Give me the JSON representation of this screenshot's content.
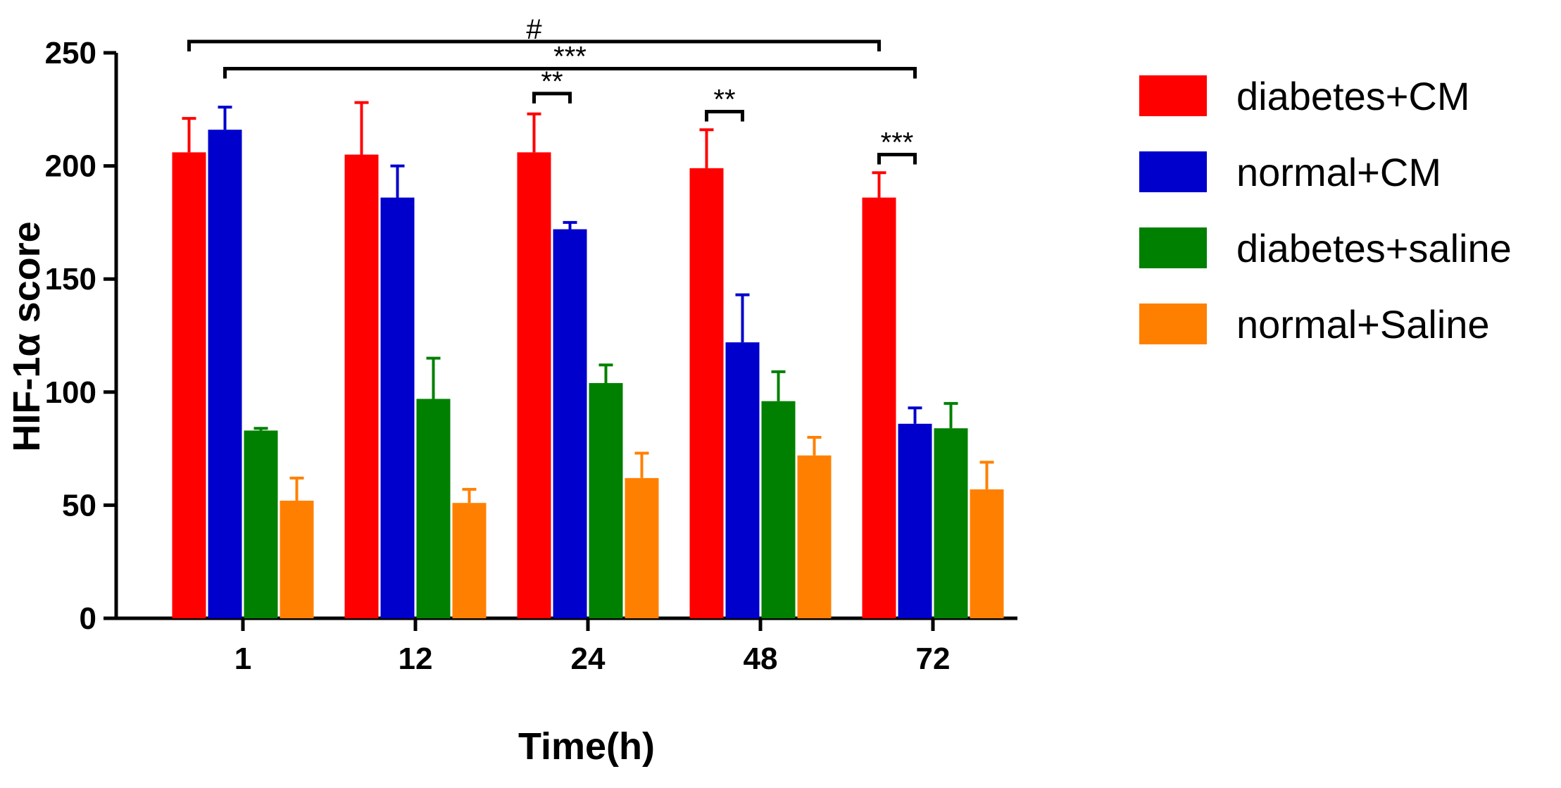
{
  "chart_data": {
    "type": "bar",
    "title": "",
    "xlabel": "Time(h)",
    "ylabel": "HIF-1α score",
    "ylim": [
      0,
      250
    ],
    "yticks": [
      0,
      50,
      100,
      150,
      200,
      250
    ],
    "categories": [
      "1",
      "12",
      "24",
      "48",
      "72"
    ],
    "series": [
      {
        "name": "diabetes+CM",
        "color": "#ff0000",
        "values": [
          206,
          205,
          206,
          199,
          186
        ],
        "errors": [
          15,
          23,
          17,
          17,
          11
        ]
      },
      {
        "name": "normal+CM",
        "color": "#0000cc",
        "values": [
          216,
          186,
          172,
          122,
          86
        ],
        "errors": [
          10,
          14,
          3,
          21,
          7
        ]
      },
      {
        "name": "diabetes+saline",
        "color": "#008000",
        "values": [
          83,
          97,
          104,
          96,
          84
        ],
        "errors": [
          1,
          18,
          8,
          13,
          11
        ]
      },
      {
        "name": "normal+Saline",
        "color": "#ff8000",
        "values": [
          52,
          51,
          62,
          72,
          57
        ],
        "errors": [
          10,
          6,
          11,
          8,
          12
        ]
      }
    ],
    "legend_position": "right",
    "annotations": [
      {
        "label": "#",
        "from": {
          "category": 0,
          "series": 0
        },
        "to": {
          "category": 4,
          "series": 0
        },
        "level": 255
      },
      {
        "label": "***",
        "from": {
          "category": 0,
          "series": 1
        },
        "to": {
          "category": 4,
          "series": 1
        },
        "level": 243
      },
      {
        "label": "**",
        "from": {
          "category": 2,
          "series": 0
        },
        "to": {
          "category": 2,
          "series": 1
        },
        "level": 232
      },
      {
        "label": "**",
        "from": {
          "category": 3,
          "series": 0
        },
        "to": {
          "category": 3,
          "series": 1
        },
        "level": 224
      },
      {
        "label": "***",
        "from": {
          "category": 4,
          "series": 0
        },
        "to": {
          "category": 4,
          "series": 1
        },
        "level": 205
      }
    ]
  }
}
